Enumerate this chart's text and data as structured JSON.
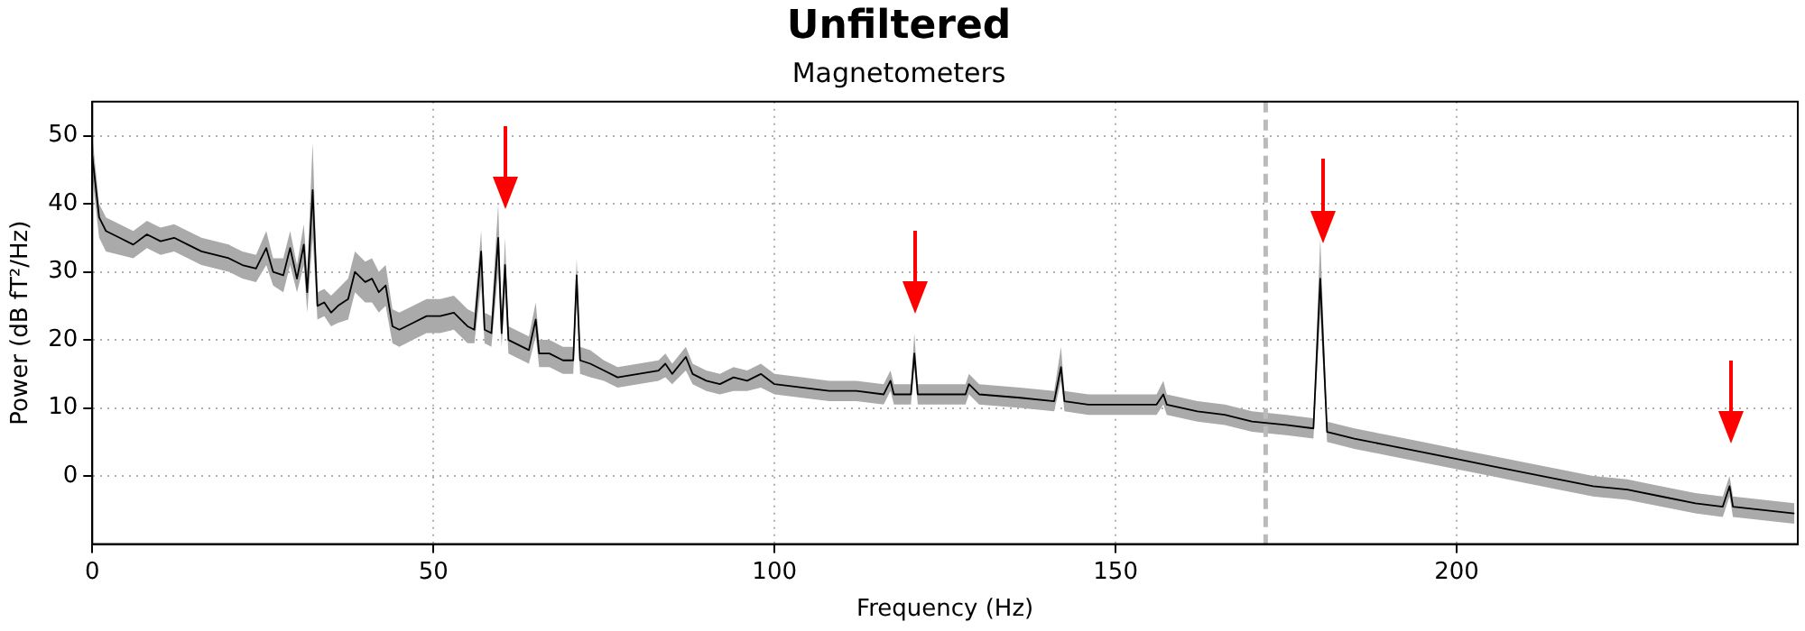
{
  "chart_data": {
    "type": "line",
    "title": "Unfiltered",
    "subtitle": "Magnetometers",
    "xlabel": "Frequency (Hz)",
    "ylabel": "Power (dB fT²/Hz)",
    "x": [
      0,
      1,
      2,
      4,
      6,
      8,
      10,
      12,
      14,
      16,
      18,
      20,
      22,
      24,
      25.5,
      26.5,
      28,
      29,
      30,
      31,
      31.5,
      32.3,
      33,
      34,
      35,
      36,
      37.5,
      38.5,
      40,
      41,
      42,
      43,
      44,
      45,
      47,
      49,
      51,
      53,
      55,
      56,
      57,
      57.5,
      58.5,
      59.5,
      60,
      60.5,
      61,
      63,
      64,
      65,
      65.5,
      67,
      69,
      70.5,
      71,
      71.5,
      73,
      75,
      77,
      80,
      83,
      84,
      85,
      87,
      88,
      90,
      92,
      94,
      96,
      98,
      100,
      104,
      108,
      112,
      116,
      117,
      117.5,
      120,
      120.5,
      121,
      124,
      128,
      128.5,
      130,
      136,
      141,
      142,
      142.5,
      146,
      150,
      156,
      157,
      157.5,
      162,
      166,
      170,
      175,
      179,
      180,
      181,
      185,
      190,
      195,
      200,
      205,
      210,
      215,
      220,
      225,
      230,
      235,
      239,
      240,
      240.5,
      245,
      249.5
    ],
    "series": [
      {
        "color": "#000000",
        "values": [
          47,
          38,
          36,
          35,
          34,
          35.5,
          34.5,
          35,
          34,
          33,
          32.5,
          32,
          31,
          30.5,
          33.5,
          30,
          29.5,
          33.5,
          29,
          34,
          27,
          42,
          25,
          25.5,
          24,
          25,
          26,
          30,
          28.5,
          29,
          27,
          28,
          22,
          21.5,
          22.5,
          23.5,
          23.5,
          24,
          22,
          21.5,
          33,
          21.5,
          21,
          35,
          21,
          31,
          20,
          19,
          18.5,
          23,
          18,
          18,
          17,
          17,
          29.5,
          17,
          16.5,
          15.5,
          14.5,
          15,
          15.5,
          16.5,
          15,
          17.5,
          15,
          14,
          13.5,
          14.5,
          14,
          15,
          13.5,
          13,
          12.5,
          12.5,
          12,
          14,
          12,
          12,
          18,
          12,
          12,
          12,
          13.5,
          12,
          11.5,
          11,
          16,
          11,
          10.5,
          10.5,
          10.5,
          12,
          10.5,
          9.5,
          9,
          8,
          7.5,
          7,
          29,
          6.5,
          5.5,
          4.5,
          3.5,
          2.5,
          1.5,
          0.5,
          -0.5,
          -1.5,
          -2,
          -3,
          -4,
          -4.5,
          -1.5,
          -4.5,
          -5,
          -5.5
        ],
        "lower": [
          44,
          35,
          33,
          32.5,
          32,
          33.5,
          32.5,
          33,
          32,
          31,
          30.5,
          30,
          29,
          28.5,
          31,
          28,
          27,
          31,
          27,
          31,
          24,
          35,
          23,
          23.5,
          22,
          22.5,
          23,
          27,
          25.5,
          25.5,
          24,
          25,
          19.5,
          19,
          20,
          21,
          21,
          21.5,
          19.5,
          19.5,
          28,
          19.5,
          19,
          30,
          19,
          27,
          18,
          17,
          16.5,
          20.5,
          16,
          16,
          15,
          15,
          26,
          15,
          14.5,
          14,
          13,
          13.5,
          14,
          14.5,
          13.5,
          15.5,
          13.5,
          12.5,
          12,
          12.5,
          12.5,
          13,
          12,
          11.5,
          11,
          11,
          10.5,
          12.5,
          10.5,
          10.5,
          16,
          10.5,
          10.5,
          10.5,
          12,
          10.5,
          10,
          9.5,
          14,
          9.5,
          9,
          9,
          9,
          10.5,
          9,
          8,
          7.5,
          6.5,
          6,
          5.5,
          24,
          5,
          4,
          3,
          2,
          1,
          0,
          -1,
          -2,
          -3,
          -3.5,
          -4.5,
          -5.5,
          -6,
          -3,
          -6,
          -6.5,
          -7
        ],
        "upper": [
          50,
          40,
          38,
          37,
          36,
          37.5,
          36.5,
          37,
          36,
          35,
          34.5,
          34,
          33,
          32.5,
          36,
          32,
          32,
          36,
          31,
          37,
          30,
          49,
          27,
          27.5,
          26.5,
          27.5,
          29,
          33,
          31.5,
          32,
          30,
          31,
          24.5,
          24,
          25,
          26,
          26,
          26.5,
          24.5,
          24,
          36,
          24,
          23.5,
          40,
          23.5,
          35,
          22,
          21,
          20.5,
          25.5,
          20,
          20,
          19,
          19,
          32,
          19,
          18.5,
          17,
          16,
          16.5,
          17,
          18,
          16.5,
          19,
          16.5,
          15.5,
          15,
          16,
          15.5,
          16.5,
          15,
          14.5,
          14,
          14,
          13.5,
          15.5,
          13.5,
          13.5,
          21,
          13.5,
          13.5,
          13.5,
          15,
          13.5,
          13,
          12.5,
          19,
          12.5,
          12,
          12,
          12,
          14,
          12,
          11,
          10.5,
          9.5,
          9,
          8.5,
          35,
          8,
          7,
          6,
          5,
          4,
          3,
          2,
          1,
          0,
          -0.5,
          -1.5,
          -2.5,
          -3,
          0,
          -3,
          -3.5,
          -4
        ]
      }
    ],
    "xlim": [
      0,
      250
    ],
    "ylim": [
      -10,
      55
    ],
    "xticks": [
      0,
      50,
      100,
      150,
      200
    ],
    "yticks": [
      0,
      10,
      20,
      30,
      40,
      50
    ],
    "grid": true,
    "line_style": "solid",
    "marker": "none",
    "ref_lines": [
      {
        "axis": "x",
        "value": 172,
        "color": "#bbbbbb",
        "line_style": "dashed"
      }
    ]
  }
}
